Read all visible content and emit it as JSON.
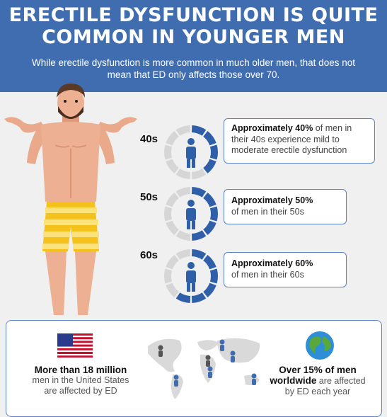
{
  "header": {
    "title_line1": "ERECTILE DYSFUNCTION IS QUITE",
    "title_line2": "COMMON IN YOUNGER MEN",
    "subtitle": "While erectile dysfunction is more common in much older men, that does not mean that ED only affects those over 70."
  },
  "ages": [
    {
      "label": "40s",
      "fraction": 0.4,
      "highlight": "Approximately 40%",
      "rest": " of men in their 40s experience mild to moderate erectile dysfunction"
    },
    {
      "label": "50s",
      "fraction": 0.5,
      "highlight": "Approximately 50%",
      "rest": "of men in their 50s"
    },
    {
      "label": "60s",
      "fraction": 0.6,
      "highlight": "Approximately 60%",
      "rest": "of men in their 60s"
    }
  ],
  "stats": {
    "us_strong": "More than 18 million",
    "us_line2": "men in the United States",
    "us_line3": "are affected by ED",
    "world_strong1": "Over 15% of men",
    "world_strong2": "worldwide",
    "world_rest1": " are affected",
    "world_rest2": "by ED each year"
  },
  "colors": {
    "accent": "#3f6db0",
    "ring_fill": "#2f5fa8",
    "ring_empty": "#d6d6d6",
    "shorts": "#f5c21b"
  },
  "icons": [
    "man-figure-illustration",
    "age-ring-icon",
    "us-flag-icon",
    "world-map-icon",
    "globe-icon"
  ]
}
